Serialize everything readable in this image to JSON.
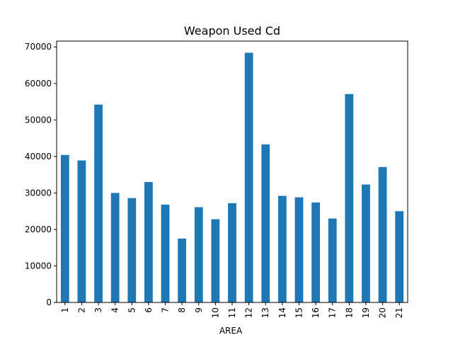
{
  "chart_data": {
    "type": "bar",
    "title": "Weapon Used Cd",
    "xlabel": "AREA",
    "ylabel": "",
    "categories": [
      "1",
      "2",
      "3",
      "4",
      "5",
      "6",
      "7",
      "8",
      "9",
      "10",
      "11",
      "12",
      "13",
      "14",
      "15",
      "16",
      "17",
      "18",
      "19",
      "20",
      "21"
    ],
    "values": [
      40400,
      38900,
      54200,
      30000,
      28600,
      33000,
      26800,
      17500,
      26100,
      22800,
      27200,
      68400,
      43300,
      29200,
      28800,
      27400,
      23000,
      57100,
      32300,
      37100,
      25000
    ],
    "ylim": [
      0,
      71600
    ],
    "yticks": [
      0,
      10000,
      20000,
      30000,
      40000,
      50000,
      60000,
      70000
    ],
    "grid": false,
    "bar_color": "#1f77b4"
  }
}
